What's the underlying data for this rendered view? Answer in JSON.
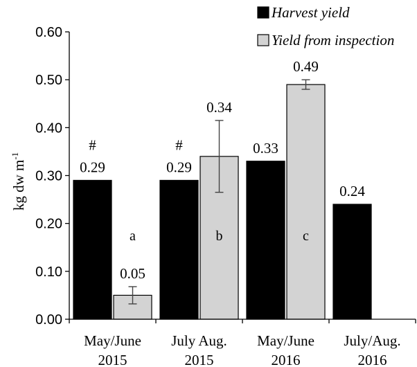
{
  "chart_data": {
    "type": "bar",
    "title": "",
    "xlabel": "",
    "ylabel": "kg dw m",
    "ylabel_superscript": "-1",
    "ylim": [
      0,
      0.6
    ],
    "yticks": [
      "0.00",
      "0.10",
      "0.20",
      "0.30",
      "0.40",
      "0.50",
      "0.60"
    ],
    "grid": false,
    "legend_position": "top-right",
    "categories": [
      [
        "May/June",
        "2015"
      ],
      [
        "July Aug.",
        "2015"
      ],
      [
        "May/June",
        "2016"
      ],
      [
        "July/Aug.",
        "2016"
      ]
    ],
    "series": [
      {
        "name": "Harvest yield",
        "color": "#000000",
        "values": [
          0.29,
          0.29,
          0.33,
          0.24
        ],
        "value_labels": [
          "0.29",
          "0.29",
          "0.33",
          "0.24"
        ],
        "errors": [
          null,
          null,
          null,
          null
        ],
        "markers": [
          "#",
          "#",
          "",
          ""
        ],
        "letters": [
          "",
          "",
          "",
          ""
        ]
      },
      {
        "name": "Yield from inspection",
        "color": "#d3d3d3",
        "values": [
          0.05,
          0.34,
          0.49,
          null
        ],
        "value_labels": [
          "0.05",
          "0.34",
          "0.49",
          ""
        ],
        "errors": [
          0.018,
          0.075,
          0.01,
          null
        ],
        "markers": [
          "",
          "",
          "",
          ""
        ],
        "letters": [
          "a",
          "b",
          "c",
          ""
        ]
      }
    ]
  }
}
